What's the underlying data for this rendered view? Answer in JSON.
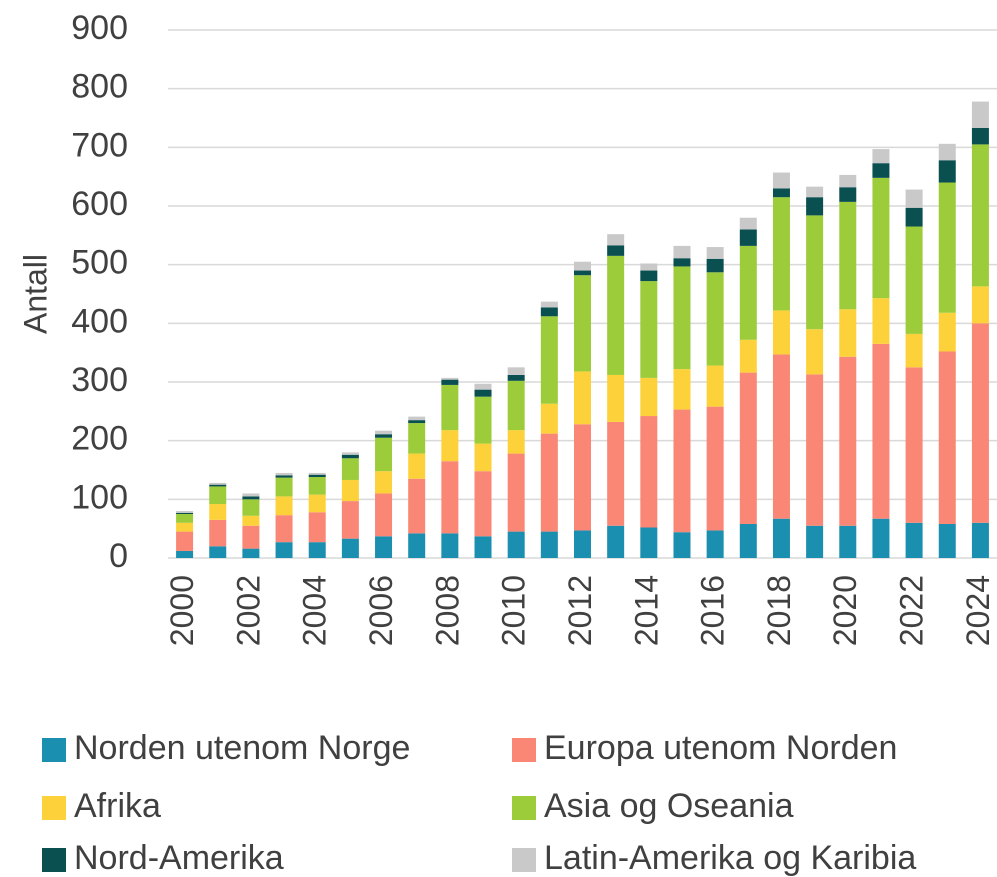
{
  "chart_data": {
    "type": "stacked_bar",
    "y_label": "Antall",
    "categories": [
      "2000",
      null,
      "2002",
      null,
      "2004",
      null,
      "2006",
      null,
      "2008",
      null,
      "2010",
      null,
      "2012",
      null,
      "2014",
      null,
      "2016",
      null,
      "2018",
      null,
      "2020",
      null,
      "2022",
      null,
      "2024"
    ],
    "series": [
      {
        "name": "Norden utenom Norge",
        "color": "#1b8fb0",
        "values": [
          12,
          20,
          16,
          27,
          27,
          33,
          37,
          42,
          42,
          37,
          45,
          45,
          47,
          55,
          52,
          44,
          47,
          58,
          67,
          55,
          55,
          67,
          60,
          58,
          60
        ]
      },
      {
        "name": "Europa utenom Norden",
        "color": "#fa8775",
        "values": [
          33,
          45,
          39,
          46,
          51,
          64,
          73,
          93,
          123,
          111,
          133,
          167,
          181,
          177,
          190,
          209,
          211,
          258,
          280,
          258,
          288,
          298,
          265,
          294,
          340
        ]
      },
      {
        "name": "Afrika",
        "color": "#fdd13a",
        "values": [
          15,
          27,
          17,
          32,
          30,
          36,
          38,
          43,
          53,
          47,
          40,
          51,
          90,
          80,
          65,
          69,
          70,
          56,
          75,
          77,
          81,
          78,
          57,
          66,
          63
        ]
      },
      {
        "name": "Asia og Oseania",
        "color": "#9dcc3a",
        "values": [
          15,
          30,
          28,
          32,
          30,
          37,
          57,
          52,
          77,
          80,
          84,
          149,
          164,
          203,
          165,
          175,
          159,
          160,
          193,
          194,
          183,
          205,
          183,
          222,
          242
        ]
      },
      {
        "name": "Nord-Amerika",
        "color": "#0b5050",
        "values": [
          2,
          3,
          5,
          4,
          4,
          6,
          6,
          5,
          9,
          12,
          10,
          15,
          8,
          18,
          18,
          14,
          23,
          28,
          15,
          31,
          25,
          25,
          32,
          38,
          28
        ]
      },
      {
        "name": "Latin-Amerika og Karibia",
        "color": "#c9c9c9",
        "values": [
          3,
          3,
          5,
          4,
          3,
          4,
          6,
          6,
          3,
          10,
          13,
          10,
          15,
          19,
          12,
          21,
          20,
          20,
          27,
          18,
          21,
          24,
          31,
          28,
          45
        ]
      }
    ],
    "ylim": [
      0,
      900
    ],
    "yticks": [
      0,
      100,
      200,
      300,
      400,
      500,
      600,
      700,
      800,
      900
    ],
    "grid": true
  }
}
